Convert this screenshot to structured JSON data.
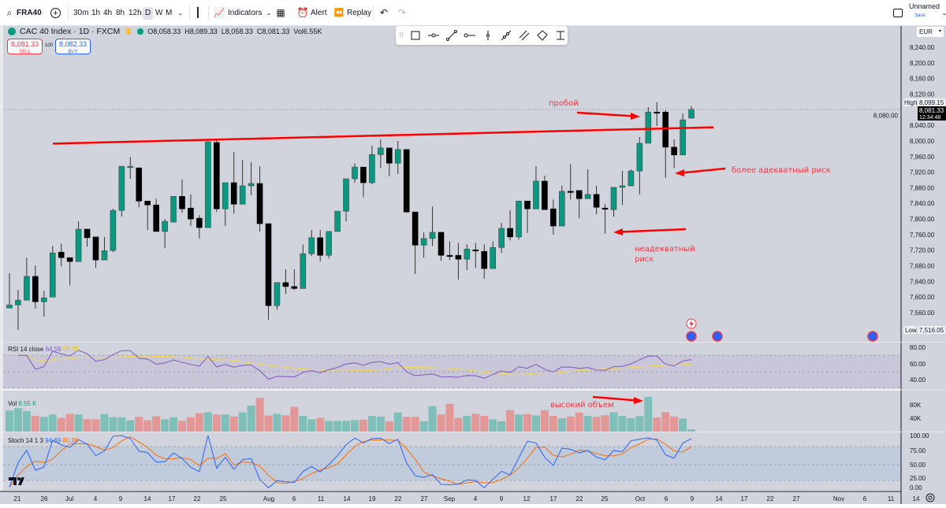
{
  "topbar": {
    "symbol": "FRA40",
    "intervals": [
      "30m",
      "1h",
      "4h",
      "8h",
      "12h",
      "D",
      "W",
      "M"
    ],
    "active_interval": "D",
    "indicators": "Indicators",
    "alert": "Alert",
    "replay": "Replay",
    "layout_name": "Unnamed",
    "save": "Save"
  },
  "legend": {
    "title": "CAC 40 Index · 1D · FXCM",
    "open": "O8,058.33",
    "high": "H8,089.33",
    "low": "L8,058.33",
    "close": "C8,081.33",
    "volume": "Vol6.55K"
  },
  "trade": {
    "sell_price": "8,081.33",
    "sell": "SELL",
    "spread": "100",
    "buy_price": "8,082.33",
    "buy": "BUY"
  },
  "axis": {
    "currency": "EUR",
    "high_label": "High",
    "high_value": "8,099.15",
    "last_price": "8,081.33",
    "countdown": "12:34:48",
    "low_label": "Low",
    "low_value": "7,516.05"
  },
  "annotations": {
    "breakout": "пробой",
    "adequate_risk": "более адекватный риск",
    "inadequate_risk_1": "неадекватный",
    "inadequate_risk_2": "риск",
    "high_volume": "высокий объем"
  },
  "indicators": {
    "rsi": {
      "label": "RSI 14 close",
      "value": "64.59",
      "ma_value": "59.39",
      "ticks": [
        "80.00",
        "60.00",
        "40.00"
      ]
    },
    "vol": {
      "label": "Vol",
      "value": "6.55 K",
      "ticks": [
        "80K",
        "40K"
      ]
    },
    "stoch": {
      "label": "Stoch 14 1 3",
      "k_value": "94.69",
      "d_value": "80.86",
      "ticks": [
        "100.00",
        "75.00",
        "50.00",
        "25.00",
        "0.00"
      ]
    }
  },
  "colors": {
    "up": "#089981",
    "down": "#000000",
    "vol_up": "#7fbfb9",
    "vol_down": "#e39797",
    "trendline": "#ff0000",
    "rsi": "#7e57c2",
    "rsi_ma": "#f7d94c",
    "stoch_k": "#2962ff",
    "stoch_d": "#ff6d00"
  },
  "chart_data": {
    "type": "candlestick",
    "title": "CAC 40 Index · 1D · FXCM",
    "ylim": [
      7540,
      8260
    ],
    "yticks": [
      "8,240.00",
      "8,200.00",
      "8,160.00",
      "8,120.00",
      "8,080.00",
      "8,040.00",
      "8,000.00",
      "7,960.00",
      "7,920.00",
      "7,880.00",
      "7,840.00",
      "7,800.00",
      "7,760.00",
      "7,720.00",
      "7,680.00",
      "7,640.00",
      "7,600.00",
      "7,560.00"
    ],
    "xticks": [
      "21",
      "26",
      "Jul",
      "4",
      "9",
      "14",
      "17",
      "22",
      "25",
      "Aug",
      "6",
      "11",
      "14",
      "19",
      "22",
      "27",
      "Sep",
      "4",
      "9",
      "12",
      "17",
      "22",
      "25",
      "Oct",
      "6",
      "9",
      "14",
      "17",
      "22",
      "27",
      "Nov",
      "6",
      "11",
      "14"
    ],
    "ohlc": [
      [
        7572,
        7661,
        7572,
        7580
      ],
      [
        7580,
        7618,
        7516,
        7592
      ],
      [
        7592,
        7701,
        7592,
        7653
      ],
      [
        7653,
        7681,
        7570,
        7588
      ],
      [
        7588,
        7616,
        7550,
        7598
      ],
      [
        7600,
        7731,
        7600,
        7713
      ],
      [
        7715,
        7737,
        7679,
        7701
      ],
      [
        7701,
        7701,
        7630,
        7691
      ],
      [
        7691,
        7794,
        7691,
        7774
      ],
      [
        7774,
        7774,
        7729,
        7752
      ],
      [
        7754,
        7754,
        7675,
        7695
      ],
      [
        7695,
        7754,
        7695,
        7719
      ],
      [
        7719,
        7826,
        7715,
        7822
      ],
      [
        7822,
        7935,
        7806,
        7935
      ],
      [
        7933,
        7959,
        7903,
        7935
      ],
      [
        7931,
        7931,
        7830,
        7846
      ],
      [
        7846,
        7846,
        7772,
        7836
      ],
      [
        7836,
        7852,
        7768,
        7768
      ],
      [
        7768,
        7800,
        7725,
        7794
      ],
      [
        7792,
        7858,
        7792,
        7858
      ],
      [
        7858,
        7901,
        7816,
        7826
      ],
      [
        7828,
        7863,
        7782,
        7800
      ],
      [
        7802,
        7810,
        7750,
        7778
      ],
      [
        7778,
        7998,
        7778,
        7998
      ],
      [
        7996,
        8004,
        7818,
        7826
      ],
      [
        7826,
        7893,
        7782,
        7893
      ],
      [
        7893,
        7972,
        7814,
        7838
      ],
      [
        7838,
        7951,
        7838,
        7885
      ],
      [
        7885,
        7945,
        7861,
        7891
      ],
      [
        7891,
        7935,
        7768,
        7788
      ],
      [
        7788,
        7788,
        7542,
        7578
      ],
      [
        7578,
        7637,
        7568,
        7637
      ],
      [
        7637,
        7671,
        7608,
        7627
      ],
      [
        7627,
        7671,
        7618,
        7622
      ],
      [
        7622,
        7735,
        7622,
        7711
      ],
      [
        7711,
        7772,
        7705,
        7752
      ],
      [
        7752,
        7772,
        7691,
        7707
      ],
      [
        7707,
        7768,
        7699,
        7768
      ],
      [
        7768,
        7820,
        7768,
        7820
      ],
      [
        7820,
        7903,
        7794,
        7903
      ],
      [
        7903,
        7943,
        7893,
        7933
      ],
      [
        7933,
        7933,
        7856,
        7893
      ],
      [
        7893,
        7988,
        7889,
        7965
      ],
      [
        7965,
        8004,
        7931,
        7982
      ],
      [
        7982,
        7982,
        7909,
        7943
      ],
      [
        7943,
        8000,
        7915,
        7978
      ],
      [
        7978,
        7978,
        7816,
        7818
      ],
      [
        7818,
        7818,
        7659,
        7733
      ],
      [
        7733,
        7766,
        7701,
        7750
      ],
      [
        7750,
        7832,
        7731,
        7766
      ],
      [
        7766,
        7766,
        7693,
        7707
      ],
      [
        7707,
        7743,
        7695,
        7705
      ],
      [
        7707,
        7739,
        7645,
        7697
      ],
      [
        7697,
        7735,
        7669,
        7723
      ],
      [
        7721,
        7739,
        7675,
        7719
      ],
      [
        7717,
        7735,
        7647,
        7673
      ],
      [
        7673,
        7743,
        7673,
        7727
      ],
      [
        7727,
        7790,
        7713,
        7776
      ],
      [
        7776,
        7822,
        7745,
        7754
      ],
      [
        7754,
        7846,
        7747,
        7846
      ],
      [
        7846,
        7846,
        7764,
        7826
      ],
      [
        7826,
        7935,
        7826,
        7897
      ],
      [
        7897,
        7911,
        7824,
        7824
      ],
      [
        7826,
        7850,
        7760,
        7782
      ],
      [
        7782,
        7885,
        7782,
        7871
      ],
      [
        7871,
        7941,
        7850,
        7869
      ],
      [
        7873,
        7873,
        7802,
        7852
      ],
      [
        7852,
        7927,
        7852,
        7863
      ],
      [
        7863,
        7885,
        7812,
        7830
      ],
      [
        7828,
        7838,
        7762,
        7826
      ],
      [
        7824,
        7881,
        7806,
        7881
      ],
      [
        7881,
        7923,
        7836,
        7885
      ],
      [
        7885,
        7927,
        7885,
        7923
      ],
      [
        7923,
        8010,
        7863,
        7994
      ],
      [
        7994,
        8087,
        7994,
        8074
      ],
      [
        8074,
        8099.15,
        8038,
        8072
      ],
      [
        8074,
        8079,
        7905,
        7984
      ],
      [
        7984,
        8004,
        7931,
        7964
      ],
      [
        7964,
        8070,
        7964,
        8054
      ],
      [
        8058.33,
        8089.33,
        8058.33,
        8081.33
      ]
    ],
    "volume_k": [
      63,
      70,
      61,
      47,
      44,
      51,
      41,
      53,
      51,
      37,
      37,
      53,
      43,
      43,
      34,
      44,
      34,
      46,
      37,
      43,
      32,
      43,
      55,
      58,
      51,
      51,
      45,
      57,
      78,
      101,
      48,
      53,
      49,
      74,
      47,
      37,
      41,
      32,
      32,
      32,
      34,
      36,
      47,
      45,
      31,
      57,
      44,
      44,
      31,
      76,
      51,
      83,
      41,
      47,
      53,
      47,
      37,
      31,
      64,
      51,
      52,
      48,
      64,
      47,
      40,
      45,
      57,
      47,
      44,
      49,
      58,
      47,
      40,
      46,
      104,
      42,
      58,
      45,
      39,
      6.55
    ],
    "trendline": {
      "from_price": 7993,
      "to_price": 8035,
      "color": "red"
    }
  }
}
